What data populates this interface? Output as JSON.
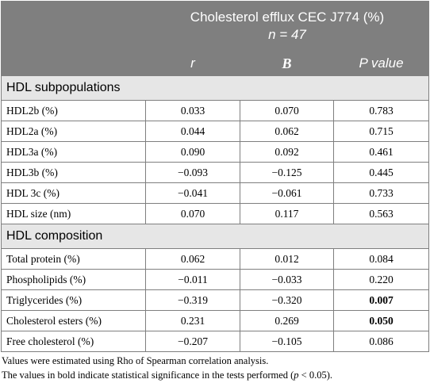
{
  "header": {
    "title_line1": "Cholesterol efflux CEC J774 (%)",
    "title_line2": "n = 47",
    "columns": [
      "r",
      "B",
      "P value"
    ]
  },
  "sections": [
    {
      "title": "HDL subpopulations",
      "rows": [
        {
          "label": "HDL2b (%)",
          "r": "0.033",
          "B": "0.070",
          "p": "0.783",
          "p_bold": false
        },
        {
          "label": "HDL2a (%)",
          "r": "0.044",
          "B": "0.062",
          "p": "0.715",
          "p_bold": false
        },
        {
          "label": "HDL3a (%)",
          "r": "0.090",
          "B": "0.092",
          "p": "0.461",
          "p_bold": false
        },
        {
          "label": "HDL3b (%)",
          "r": "−0.093",
          "B": "−0.125",
          "p": "0.445",
          "p_bold": false
        },
        {
          "label": "HDL 3c (%)",
          "r": "−0.041",
          "B": "−0.061",
          "p": "0.733",
          "p_bold": false
        },
        {
          "label": "HDL size (nm)",
          "r": "0.070",
          "B": "0.117",
          "p": "0.563",
          "p_bold": false
        }
      ]
    },
    {
      "title": "HDL composition",
      "rows": [
        {
          "label": "Total protein (%)",
          "r": "0.062",
          "B": "0.012",
          "p": "0.084",
          "p_bold": false
        },
        {
          "label": "Phospholipids (%)",
          "r": "−0.011",
          "B": "−0.033",
          "p": "0.220",
          "p_bold": false
        },
        {
          "label": "Triglycerides (%)",
          "r": "−0.319",
          "B": "−0.320",
          "p": "0.007",
          "p_bold": true
        },
        {
          "label": "Cholesterol esters (%)",
          "r": "0.231",
          "B": "0.269",
          "p": "0.050",
          "p_bold": true
        },
        {
          "label": "Free cholesterol (%)",
          "r": "−0.207",
          "B": "−0.105",
          "p": "0.086",
          "p_bold": false
        }
      ]
    }
  ],
  "notes": {
    "line1": "Values were estimated using Rho of Spearman correlation analysis.",
    "line2_prefix": "The values in bold indicate statistical significance in the tests performed (",
    "line2_p": "p",
    "line2_suffix": " < 0.05)."
  }
}
